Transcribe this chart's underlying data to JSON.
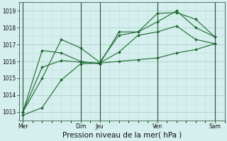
{
  "bg_color": "#d5eeee",
  "grid_color_major": "#a8cfc8",
  "grid_color_minor": "#c0e0da",
  "line_color": "#1a6b2a",
  "ylim": [
    1012.5,
    1019.5
  ],
  "yticks": [
    1013,
    1014,
    1015,
    1016,
    1017,
    1018,
    1019
  ],
  "xlabel": "Pression niveau de la mer( hPa )",
  "xlabel_fontsize": 7.5,
  "xtick_labels": [
    "Mer",
    "Dim",
    "Jeu",
    "Ven",
    "Sam"
  ],
  "xtick_positions": [
    0,
    3,
    4,
    7,
    10
  ],
  "vlines_x": [
    0,
    3,
    4,
    7,
    10
  ],
  "xlim": [
    -0.2,
    10.5
  ],
  "n_points": 11,
  "series1_slow": [
    1012.8,
    1013.25,
    1014.9,
    1015.85,
    1015.9,
    1016.0,
    1016.1,
    1016.2,
    1016.5,
    1016.7,
    1017.05
  ],
  "series2_mid": [
    1013.0,
    1015.65,
    1016.05,
    1015.95,
    1015.9,
    1016.55,
    1017.55,
    1017.75,
    1018.1,
    1017.3,
    1017.05
  ],
  "series3_jagged": [
    1013.0,
    1015.0,
    1017.3,
    1016.8,
    1015.95,
    1017.55,
    1017.75,
    1018.35,
    1019.0,
    1018.0,
    1017.45
  ],
  "series4_high": [
    1013.0,
    1016.65,
    1016.5,
    1016.0,
    1015.85,
    1017.75,
    1017.75,
    1018.85,
    1018.9,
    1018.5,
    1017.45
  ]
}
